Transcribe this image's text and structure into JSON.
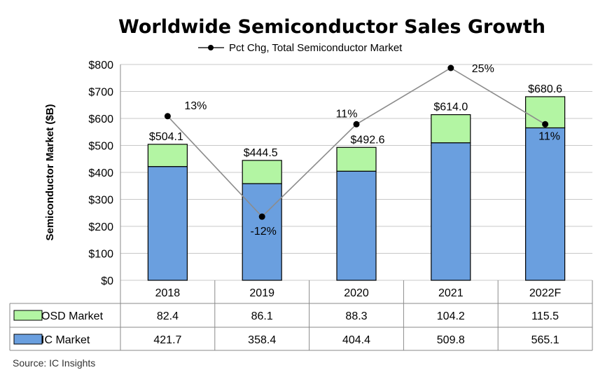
{
  "chart_data": {
    "type": "bar",
    "stacked": true,
    "title": "Worldwide Semiconductor Sales Growth",
    "ylabel": "Semiconductor Market ($B)",
    "ylim": [
      0,
      800
    ],
    "yticks": [
      "$0",
      "$100",
      "$200",
      "$300",
      "$400",
      "$500",
      "$600",
      "$700",
      "$800"
    ],
    "grid": true,
    "categories": [
      "2018",
      "2019",
      "2020",
      "2021",
      "2022F"
    ],
    "series": [
      {
        "name": "IC Market",
        "values": [
          421.7,
          358.4,
          404.4,
          509.8,
          565.1
        ],
        "color": "#6a9fdf"
      },
      {
        "name": "OSD Market",
        "values": [
          82.4,
          86.1,
          88.3,
          104.2,
          115.5
        ],
        "color": "#b3f5a3"
      }
    ],
    "totals": [
      504.1,
      444.5,
      492.6,
      614.0,
      680.6
    ],
    "total_labels": [
      "$504.1",
      "$444.5",
      "$492.6",
      "$614.0",
      "$680.6"
    ],
    "line_series": {
      "name": "Pct Chg, Total Semiconductor Market",
      "values": [
        13,
        -12,
        11,
        25,
        11
      ],
      "labels": [
        "13%",
        "-12%",
        "11%",
        "25%",
        "11%"
      ]
    },
    "table": {
      "rows": [
        {
          "name": "OSD Market",
          "values": [
            "82.4",
            "86.1",
            "88.3",
            "104.2",
            "115.5"
          ]
        },
        {
          "name": "IC Market",
          "values": [
            "421.7",
            "358.4",
            "404.4",
            "509.8",
            "565.1"
          ]
        }
      ]
    },
    "source": "Source: IC Insights"
  }
}
